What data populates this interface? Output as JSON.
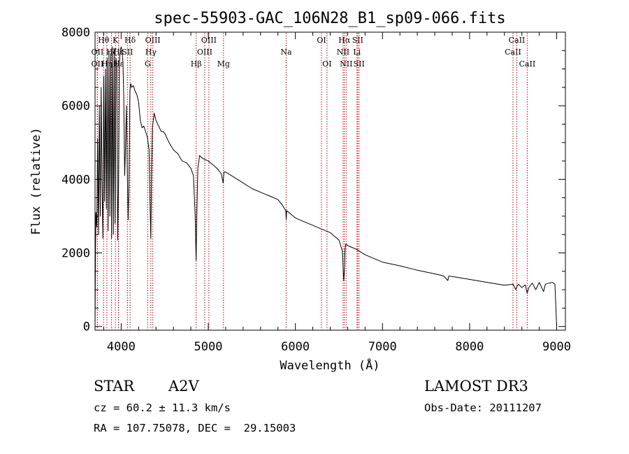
{
  "chart_data": {
    "type": "line",
    "title": "spec-55903-GAC_106N28_B1_sp09-066.fits",
    "xlabel": "Wavelength (Å)",
    "ylabel": "Flux (relative)",
    "xlim": [
      3700,
      9100
    ],
    "ylim": [
      -100,
      8000
    ],
    "xticks": [
      4000,
      5000,
      6000,
      7000,
      8000,
      9000
    ],
    "xtick_labels": [
      "4000",
      "5000",
      "6000",
      "7000",
      "8000",
      "9000"
    ],
    "yticks": [
      0,
      2000,
      4000,
      6000,
      8000
    ],
    "ytick_labels": [
      "0",
      "2000",
      "4000",
      "6000",
      "8000"
    ],
    "series": [
      {
        "name": "flux",
        "x": [
          3700,
          3705,
          3710,
          3720,
          3730,
          3740,
          3750,
          3760,
          3770,
          3780,
          3790,
          3800,
          3810,
          3820,
          3830,
          3840,
          3850,
          3860,
          3870,
          3880,
          3890,
          3900,
          3910,
          3920,
          3930,
          3940,
          3950,
          3960,
          3970,
          3980,
          3990,
          4000,
          4010,
          4020,
          4030,
          4040,
          4050,
          4060,
          4070,
          4080,
          4090,
          4100,
          4110,
          4120,
          4140,
          4160,
          4180,
          4200,
          4220,
          4240,
          4260,
          4280,
          4300,
          4320,
          4330,
          4340,
          4350,
          4360,
          4380,
          4400,
          4420,
          4440,
          4460,
          4480,
          4500,
          4550,
          4600,
          4650,
          4700,
          4750,
          4800,
          4830,
          4850,
          4860,
          4870,
          4880,
          4900,
          4920,
          4950,
          5000,
          5050,
          5100,
          5150,
          5170,
          5180,
          5200,
          5300,
          5400,
          5500,
          5600,
          5700,
          5800,
          5850,
          5890,
          5895,
          5900,
          5950,
          6000,
          6100,
          6200,
          6300,
          6400,
          6450,
          6500,
          6540,
          6550,
          6555,
          6562,
          6570,
          6580,
          6600,
          6700,
          6800,
          6900,
          7000,
          7200,
          7400,
          7600,
          7700,
          7750,
          7760,
          7800,
          8000,
          8200,
          8400,
          8500,
          8530,
          8542,
          8560,
          8600,
          8640,
          8662,
          8680,
          8720,
          8760,
          8800,
          8850,
          8870,
          8900,
          8950,
          8980,
          9000
        ],
        "y": [
          0,
          2000,
          3100,
          2700,
          5100,
          2500,
          6000,
          3000,
          6500,
          3800,
          2400,
          6800,
          3400,
          7000,
          3200,
          7300,
          2600,
          7500,
          3000,
          7400,
          2400,
          7600,
          2500,
          7500,
          2800,
          7300,
          7100,
          2350,
          4000,
          7200,
          7500,
          7600,
          7500,
          7200,
          6200,
          4100,
          4900,
          6000,
          4300,
          2900,
          4000,
          6400,
          6600,
          6500,
          6550,
          6400,
          6300,
          6100,
          5600,
          5400,
          5450,
          5300,
          5150,
          4800,
          3500,
          2400,
          4300,
          5450,
          5800,
          5600,
          5500,
          5400,
          5300,
          5300,
          5250,
          5000,
          4800,
          4700,
          4500,
          4450,
          4300,
          4100,
          3000,
          1800,
          3200,
          4300,
          4650,
          4600,
          4550,
          4500,
          4400,
          4300,
          4150,
          3900,
          4200,
          4200,
          4050,
          3900,
          3750,
          3650,
          3550,
          3450,
          3300,
          3150,
          2900,
          3150,
          3050,
          2950,
          2850,
          2750,
          2650,
          2550,
          2450,
          2350,
          2050,
          1500,
          1250,
          1500,
          2100,
          2250,
          2200,
          2100,
          1950,
          1850,
          1750,
          1650,
          1530,
          1430,
          1380,
          1250,
          1370,
          1360,
          1280,
          1200,
          1120,
          1150,
          1000,
          1080,
          1150,
          1060,
          1130,
          900,
          1060,
          1180,
          1000,
          1200,
          950,
          1150,
          1170,
          1200,
          1150,
          0
        ]
      }
    ],
    "line_markers": [
      {
        "name": "OII",
        "wavelength": 3727,
        "row": 2
      },
      {
        "name": "OII",
        "wavelength": 3727,
        "row": 3
      },
      {
        "name": "Hθ",
        "wavelength": 3798,
        "row": 1
      },
      {
        "name": "Hη",
        "wavelength": 3836,
        "row": 3
      },
      {
        "name": "Hζ",
        "wavelength": 3889,
        "row": 2
      },
      {
        "name": "K",
        "wavelength": 3934,
        "row": 1
      },
      {
        "name": "Hε",
        "wavelength": 3970,
        "row": 3
      },
      {
        "name": "Hε",
        "wavelength": 3970,
        "row": 2
      },
      {
        "name": "SII",
        "wavelength": 4072,
        "row": 2
      },
      {
        "name": "Hδ",
        "wavelength": 4102,
        "row": 1
      },
      {
        "name": "G",
        "wavelength": 4305,
        "row": 3
      },
      {
        "name": "Hγ",
        "wavelength": 4341,
        "row": 2
      },
      {
        "name": "OIII",
        "wavelength": 4363,
        "row": 1
      },
      {
        "name": "Hβ",
        "wavelength": 4861,
        "row": 3
      },
      {
        "name": "OIII",
        "wavelength": 4959,
        "row": 2
      },
      {
        "name": "OIII",
        "wavelength": 5007,
        "row": 1
      },
      {
        "name": "Mg",
        "wavelength": 5175,
        "row": 3
      },
      {
        "name": "Na",
        "wavelength": 5894,
        "row": 2
      },
      {
        "name": "OI",
        "wavelength": 6300,
        "row": 1
      },
      {
        "name": "OI",
        "wavelength": 6363,
        "row": 3
      },
      {
        "name": "NII",
        "wavelength": 6548,
        "row": 2
      },
      {
        "name": "Hα",
        "wavelength": 6563,
        "row": 1
      },
      {
        "name": "NII",
        "wavelength": 6583,
        "row": 3
      },
      {
        "name": "Li",
        "wavelength": 6707,
        "row": 2
      },
      {
        "name": "SII",
        "wavelength": 6716,
        "row": 1
      },
      {
        "name": "SII",
        "wavelength": 6731,
        "row": 3
      },
      {
        "name": "CaII",
        "wavelength": 8498,
        "row": 2
      },
      {
        "name": "CaII",
        "wavelength": 8542,
        "row": 1
      },
      {
        "name": "CaII",
        "wavelength": 8662,
        "row": 3
      }
    ]
  },
  "info": {
    "object_class": "STAR",
    "subclass": "A2V",
    "survey": "LAMOST DR3",
    "redshift": "cz = 60.2 ± 11.3 km/s",
    "obs_date": "Obs-Date: 20111207",
    "coords": "RA = 107.75078, DEC =  29.15003"
  },
  "colors": {
    "spectrum": "#000000",
    "line_marker": "#c00000",
    "axis": "#000000",
    "background": "#ffffff"
  }
}
